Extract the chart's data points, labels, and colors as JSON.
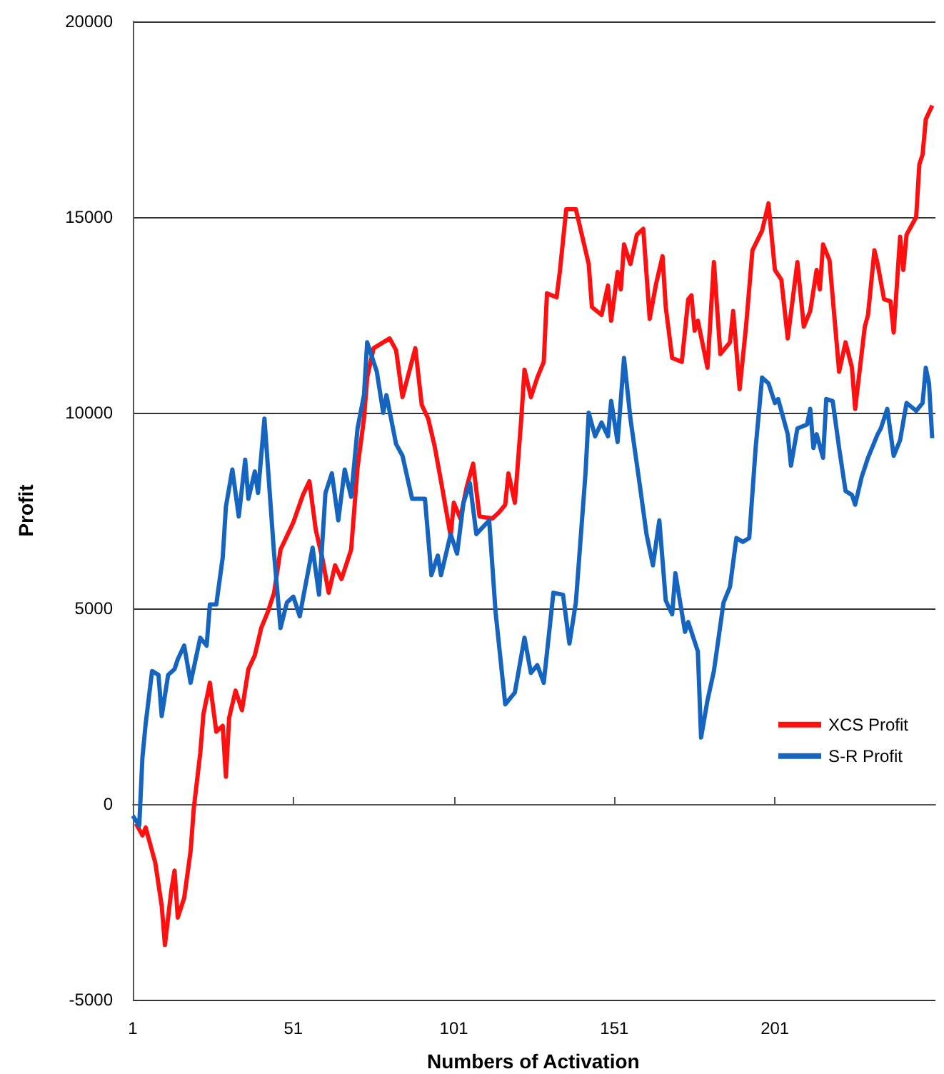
{
  "chart_data": {
    "type": "line",
    "xlabel": "Numbers of Activation",
    "ylabel": "Profit",
    "xlim": [
      1,
      251
    ],
    "xticks": [
      1,
      51,
      101,
      151,
      201
    ],
    "ylim": [
      -5000,
      20000
    ],
    "yticks": [
      -5000,
      0,
      5000,
      10000,
      15000,
      20000
    ],
    "grid": "y",
    "legend": "right",
    "marker": "none",
    "line_style": "solid",
    "series": [
      {
        "name": "XCS Profit",
        "color": "#ff1010",
        "x": [
          2,
          4,
          5,
          8,
          10,
          11,
          13,
          14,
          15,
          17,
          19,
          20,
          22,
          23,
          25,
          27,
          29,
          30,
          31,
          33,
          35,
          37,
          39,
          41,
          43,
          45,
          47,
          51,
          54,
          56,
          58,
          60,
          62,
          64,
          66,
          69,
          71,
          73,
          74,
          76,
          81,
          83,
          85,
          89,
          91,
          93,
          95,
          97,
          100,
          101,
          103,
          105,
          107,
          109,
          113,
          115,
          117,
          118,
          120,
          122,
          123,
          125,
          127,
          129,
          130,
          133,
          134,
          136,
          139,
          141,
          143,
          144,
          147,
          149,
          150,
          152,
          153,
          154,
          156,
          158,
          160,
          162,
          164,
          166,
          167,
          169,
          172,
          174,
          175,
          176,
          177,
          180,
          182,
          184,
          187,
          188,
          190,
          192,
          194,
          197,
          199,
          201,
          203,
          205,
          208,
          210,
          212,
          214,
          215,
          216,
          218,
          221,
          223,
          225,
          226,
          229,
          230,
          232,
          233,
          235,
          237,
          238,
          240,
          241,
          242,
          245,
          246,
          247,
          248,
          250
        ],
        "values": [
          -500,
          -800,
          -600,
          -1500,
          -2600,
          -3600,
          -2200,
          -1700,
          -2900,
          -2400,
          -1200,
          -100,
          1300,
          2300,
          3100,
          1850,
          2000,
          700,
          2200,
          2900,
          2400,
          3450,
          3800,
          4500,
          4900,
          5400,
          6500,
          7200,
          7900,
          8250,
          7000,
          6300,
          5400,
          6100,
          5750,
          6500,
          8600,
          9850,
          10900,
          11650,
          11900,
          11600,
          10400,
          11650,
          10200,
          9850,
          9150,
          8250,
          6850,
          7700,
          7300,
          8100,
          8700,
          7350,
          7300,
          7450,
          7650,
          8450,
          7700,
          9850,
          11100,
          10400,
          10900,
          11300,
          13050,
          12950,
          13600,
          15200,
          15200,
          14500,
          13800,
          12700,
          12500,
          13250,
          12350,
          13600,
          13150,
          14300,
          13800,
          14550,
          14700,
          12400,
          13300,
          14000,
          12700,
          11400,
          11300,
          12900,
          13000,
          12100,
          12350,
          11150,
          13850,
          11500,
          11800,
          12600,
          10600,
          12200,
          14150,
          14650,
          15350,
          13650,
          13400,
          11900,
          13850,
          12200,
          12600,
          13650,
          13150,
          14300,
          13900,
          11050,
          11800,
          11150,
          10100,
          12200,
          12500,
          14150,
          13800,
          12900,
          12850,
          12050,
          14500,
          13650,
          14550,
          15000,
          16350,
          16600,
          17500,
          17850
        ]
      },
      {
        "name": "S-R Profit",
        "color": "#1565c0",
        "x": [
          1,
          3,
          4,
          5,
          7,
          9,
          10,
          12,
          14,
          15,
          17,
          19,
          22,
          24,
          25,
          27,
          29,
          30,
          32,
          34,
          36,
          37,
          39,
          40,
          42,
          45,
          47,
          49,
          51,
          53,
          54,
          57,
          59,
          61,
          63,
          65,
          67,
          69,
          71,
          73,
          74,
          77,
          79,
          80,
          83,
          85,
          88,
          92,
          94,
          96,
          97,
          100,
          102,
          104,
          106,
          108,
          112,
          114,
          117,
          120,
          123,
          125,
          127,
          129,
          132,
          135,
          137,
          139,
          142,
          143,
          145,
          147,
          149,
          150,
          152,
          154,
          156,
          159,
          161,
          163,
          165,
          167,
          169,
          170,
          173,
          174,
          177,
          178,
          180,
          182,
          185,
          187,
          189,
          191,
          193,
          195,
          197,
          199,
          201,
          202,
          205,
          206,
          208,
          211,
          212,
          213,
          214,
          216,
          217,
          219,
          221,
          223,
          225,
          226,
          228,
          230,
          233,
          234,
          236,
          238,
          240,
          242,
          245,
          247,
          248,
          249,
          250
        ],
        "values": [
          -300,
          -550,
          1200,
          2050,
          3400,
          3300,
          2250,
          3300,
          3450,
          3700,
          4050,
          3100,
          4250,
          4050,
          5100,
          5100,
          6300,
          7600,
          8550,
          7350,
          8800,
          7800,
          8500,
          7950,
          9850,
          6400,
          4500,
          5150,
          5300,
          4800,
          5250,
          6550,
          5350,
          7950,
          8450,
          7250,
          8550,
          7850,
          9600,
          10450,
          11800,
          11050,
          10000,
          10450,
          9200,
          8900,
          7800,
          7800,
          5850,
          6350,
          5850,
          6900,
          6400,
          7700,
          8200,
          6900,
          7250,
          4900,
          2550,
          2850,
          4250,
          3350,
          3550,
          3100,
          5400,
          5350,
          4100,
          5150,
          8450,
          10000,
          9400,
          9750,
          9400,
          10300,
          9250,
          11400,
          9850,
          8100,
          6900,
          6100,
          7250,
          5200,
          4850,
          5900,
          4400,
          4650,
          3900,
          1700,
          2650,
          3400,
          5150,
          5550,
          6800,
          6700,
          6800,
          9100,
          10900,
          10750,
          10250,
          10350,
          9450,
          8650,
          9600,
          9700,
          10100,
          9100,
          9450,
          8850,
          10350,
          10300,
          9100,
          8000,
          7900,
          7650,
          8350,
          8850,
          9450,
          9600,
          10100,
          8900,
          9300,
          10250,
          10050,
          10250,
          11150,
          10750,
          9350
        ]
      }
    ]
  }
}
